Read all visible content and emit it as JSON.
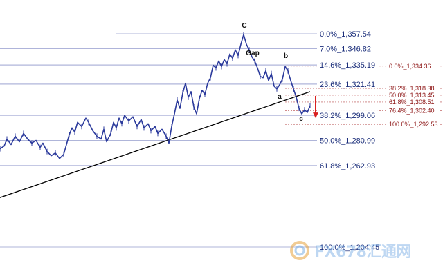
{
  "chart_data": {
    "type": "line",
    "title": "",
    "xlabel": "",
    "ylabel": "",
    "ylim": [
      1200,
      1368
    ],
    "colors": {
      "price": "#2b3a9c",
      "fib_main": "#2b3a9c",
      "fib_secondary": "#a31b1b",
      "trendline": "#000000",
      "arrow": "#d92020",
      "background": "#ffffff"
    },
    "fib_levels_main": [
      {
        "label": "0.0%",
        "value": "1,357.54",
        "price": 1357.54
      },
      {
        "label": "7.0%",
        "value": "1,346.82",
        "price": 1346.82
      },
      {
        "label": "14.6%",
        "value": "1,335.19",
        "price": 1335.19
      },
      {
        "label": "23.6%",
        "value": "1,321.41",
        "price": 1321.41
      },
      {
        "label": "38.2%",
        "value": "1,299.06",
        "price": 1299.06
      },
      {
        "label": "50.0%",
        "value": "1,280.99",
        "price": 1280.99
      },
      {
        "label": "61.8%",
        "value": "1,262.93",
        "price": 1262.93
      },
      {
        "label": "100.0%",
        "value": "1,204.45",
        "price": 1204.45
      }
    ],
    "fib_levels_secondary": [
      {
        "label": "0.0%",
        "value": "1,334.36",
        "price": 1334.36
      },
      {
        "label": "38.2%",
        "value": "1,318.38",
        "price": 1318.38
      },
      {
        "label": "50.0%",
        "value": "1,313.45",
        "price": 1313.45
      },
      {
        "label": "61.8%",
        "value": "1,308.51",
        "price": 1308.51
      },
      {
        "label": "76.4%",
        "value": "1,302.40",
        "price": 1302.4
      },
      {
        "label": "100.0%",
        "value": "1,292.53",
        "price": 1292.53
      }
    ],
    "wave_labels": [
      {
        "text": "C",
        "anchor": "peak"
      },
      {
        "text": "Gap",
        "anchor": "gap"
      },
      {
        "text": "b",
        "anchor": "b"
      },
      {
        "text": "a",
        "anchor": "a"
      },
      {
        "text": "c",
        "anchor": "c"
      }
    ],
    "price_series": {
      "name": "",
      "points": [
        [
          0,
          1275
        ],
        [
          6,
          1277
        ],
        [
          10,
          1282
        ],
        [
          16,
          1278
        ],
        [
          22,
          1284
        ],
        [
          28,
          1280
        ],
        [
          34,
          1286
        ],
        [
          40,
          1282
        ],
        [
          46,
          1279
        ],
        [
          52,
          1281
        ],
        [
          58,
          1276
        ],
        [
          62,
          1279
        ],
        [
          68,
          1273
        ],
        [
          74,
          1270
        ],
        [
          80,
          1272
        ],
        [
          86,
          1268
        ],
        [
          92,
          1271
        ],
        [
          96,
          1278
        ],
        [
          100,
          1285
        ],
        [
          104,
          1290
        ],
        [
          108,
          1287
        ],
        [
          112,
          1294
        ],
        [
          118,
          1291
        ],
        [
          124,
          1297
        ],
        [
          128,
          1294
        ],
        [
          134,
          1288
        ],
        [
          140,
          1284
        ],
        [
          146,
          1282
        ],
        [
          150,
          1289
        ],
        [
          154,
          1280
        ],
        [
          160,
          1286
        ],
        [
          164,
          1294
        ],
        [
          168,
          1290
        ],
        [
          172,
          1297
        ],
        [
          176,
          1293
        ],
        [
          180,
          1299
        ],
        [
          186,
          1295
        ],
        [
          192,
          1298
        ],
        [
          198,
          1291
        ],
        [
          204,
          1296
        ],
        [
          208,
          1290
        ],
        [
          214,
          1293
        ],
        [
          218,
          1288
        ],
        [
          224,
          1291
        ],
        [
          228,
          1286
        ],
        [
          234,
          1289
        ],
        [
          240,
          1284
        ],
        [
          244,
          1279
        ],
        [
          248,
          1291
        ],
        [
          252,
          1300
        ],
        [
          256,
          1310
        ],
        [
          260,
          1304
        ],
        [
          264,
          1315
        ],
        [
          268,
          1322
        ],
        [
          272,
          1312
        ],
        [
          276,
          1316
        ],
        [
          280,
          1305
        ],
        [
          284,
          1300
        ],
        [
          288,
          1311
        ],
        [
          292,
          1317
        ],
        [
          296,
          1314
        ],
        [
          300,
          1322
        ],
        [
          304,
          1326
        ],
        [
          308,
          1335
        ],
        [
          312,
          1333
        ],
        [
          316,
          1338
        ],
        [
          320,
          1334
        ],
        [
          324,
          1339
        ],
        [
          328,
          1336
        ],
        [
          332,
          1343
        ],
        [
          336,
          1340
        ],
        [
          340,
          1346
        ],
        [
          344,
          1342
        ],
        [
          348,
          1350
        ],
        [
          352,
          1357
        ],
        [
          356,
          1350
        ],
        [
          360,
          1346
        ],
        [
          364,
          1341
        ],
        [
          368,
          1338
        ],
        [
          372,
          1333
        ],
        [
          376,
          1327
        ],
        [
          380,
          1326
        ],
        [
          384,
          1331
        ],
        [
          388,
          1324
        ],
        [
          392,
          1329
        ],
        [
          396,
          1320
        ],
        [
          400,
          1318
        ],
        [
          404,
          1321
        ],
        [
          408,
          1325
        ],
        [
          412,
          1334
        ],
        [
          416,
          1331
        ],
        [
          420,
          1324
        ],
        [
          424,
          1318
        ],
        [
          428,
          1312
        ],
        [
          432,
          1304
        ],
        [
          436,
          1300
        ],
        [
          440,
          1303
        ],
        [
          444,
          1301
        ],
        [
          448,
          1306
        ]
      ]
    },
    "trendline": {
      "from": [
        0,
        1240
      ],
      "to": [
        448,
        1316
      ]
    },
    "arrow": {
      "from": [
        456,
        1313
      ],
      "to": [
        456,
        1298
      ]
    }
  },
  "watermark": {
    "text": "FX678汇通网",
    "logo": "circle-logo-icon"
  }
}
